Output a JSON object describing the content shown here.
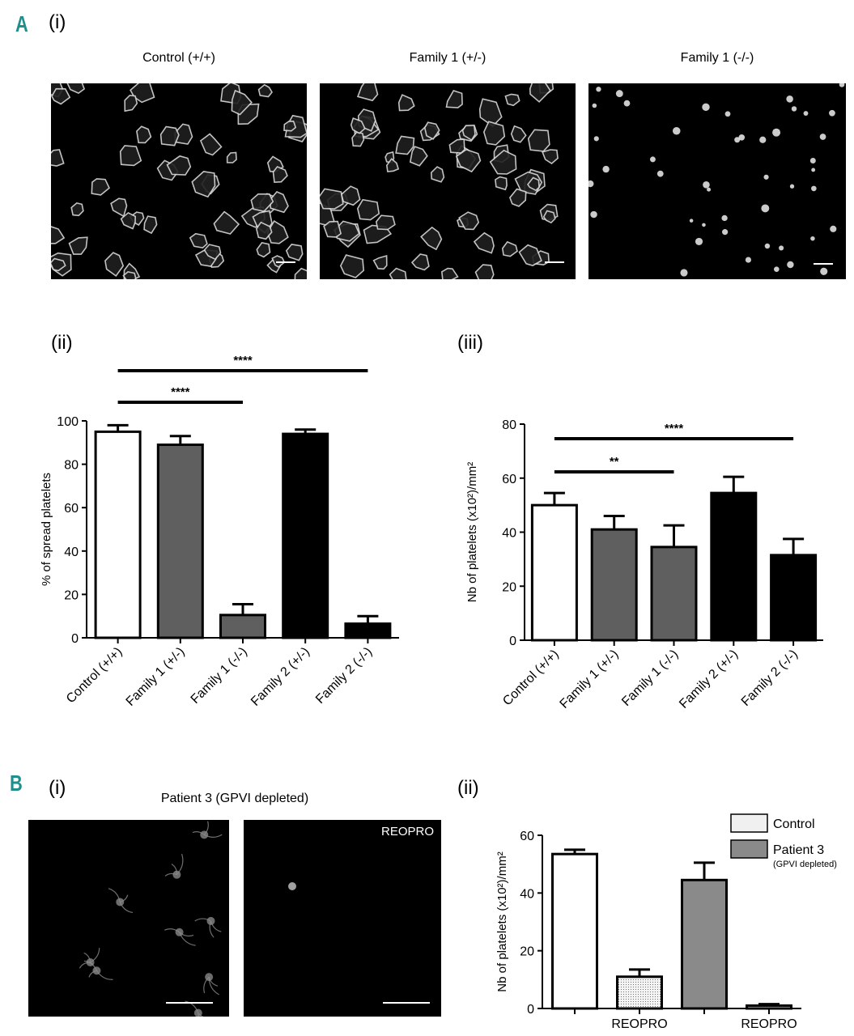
{
  "panels": {
    "a_letter": "A",
    "b_letter": "B",
    "a_i": "(i)",
    "a_ii": "(ii)",
    "a_iii": "(iii)",
    "b_i": "(i)",
    "b_ii": "(ii)"
  },
  "micrographs_a": [
    {
      "title": "Control (+/+)"
    },
    {
      "title": "Family 1 (+/-)"
    },
    {
      "title": "Family 1 (-/-)"
    }
  ],
  "micrographs_b": {
    "title": "Patient 3 (GPVI depleted)",
    "reopro_tag": "REOPRO"
  },
  "colors": {
    "teal_letter": "#1f8f8c",
    "white_bar": "#ffffff",
    "dark_gray_bar": "#5f5f5f",
    "black_bar": "#000000",
    "light_gray_bar": "#f0f0f0",
    "mid_gray_bar": "#8a8a8a"
  },
  "chart_data": [
    {
      "id": "a_ii",
      "type": "bar",
      "categories": [
        "Control (+/+)",
        "Family 1 (+/-)",
        "Family 1 (-/-)",
        "Family 2 (+/-)",
        "Family 2 (-/-)"
      ],
      "values": [
        95,
        89,
        10.5,
        94,
        6.5
      ],
      "errors": [
        3,
        4,
        5,
        2,
        3.5
      ],
      "fills": [
        "white",
        "dark_gray",
        "dark_gray",
        "black",
        "black"
      ],
      "ylabel": "% of spread platelets",
      "xlabel": "",
      "ylim": [
        0,
        100
      ],
      "yticks": [
        0,
        20,
        40,
        60,
        80,
        100
      ],
      "significance": [
        {
          "from": 0,
          "to": 2,
          "label": "****"
        },
        {
          "from": 0,
          "to": 4,
          "label": "****"
        }
      ]
    },
    {
      "id": "a_iii",
      "type": "bar",
      "categories": [
        "Control (+/+)",
        "Family 1 (+/-)",
        "Family 1 (-/-)",
        "Family 2 (+/-)",
        "Family 2 (-/-)"
      ],
      "values": [
        50,
        41,
        34.5,
        54.5,
        31.5
      ],
      "errors": [
        4.5,
        5,
        8,
        6,
        6
      ],
      "fills": [
        "white",
        "dark_gray",
        "dark_gray",
        "black",
        "black"
      ],
      "ylabel": "Nb of platelets (x10²)/mm²",
      "xlabel": "",
      "ylim": [
        0,
        80
      ],
      "yticks": [
        0,
        20,
        40,
        60,
        80
      ],
      "significance": [
        {
          "from": 0,
          "to": 2,
          "label": "**"
        },
        {
          "from": 0,
          "to": 4,
          "label": "****"
        }
      ]
    },
    {
      "id": "b_ii",
      "type": "bar",
      "categories": [
        "",
        "REOPRO",
        "",
        "REOPRO"
      ],
      "values": [
        53.5,
        11,
        44.5,
        1
      ],
      "errors": [
        1.5,
        2.5,
        6,
        0.5
      ],
      "fills": [
        "white",
        "dotted",
        "mid_gray",
        "dotted"
      ],
      "ylabel": "Nb of platelets (x10²)/mm²",
      "xlabel": "",
      "ylim": [
        0,
        60
      ],
      "yticks": [
        0,
        20,
        40,
        60
      ],
      "legend_position": "top-right",
      "legend": [
        {
          "name": "Control",
          "fill": "light_gray"
        },
        {
          "name": "Patient 3",
          "subname": "(GPVI depleted)",
          "fill": "mid_gray"
        }
      ]
    }
  ]
}
